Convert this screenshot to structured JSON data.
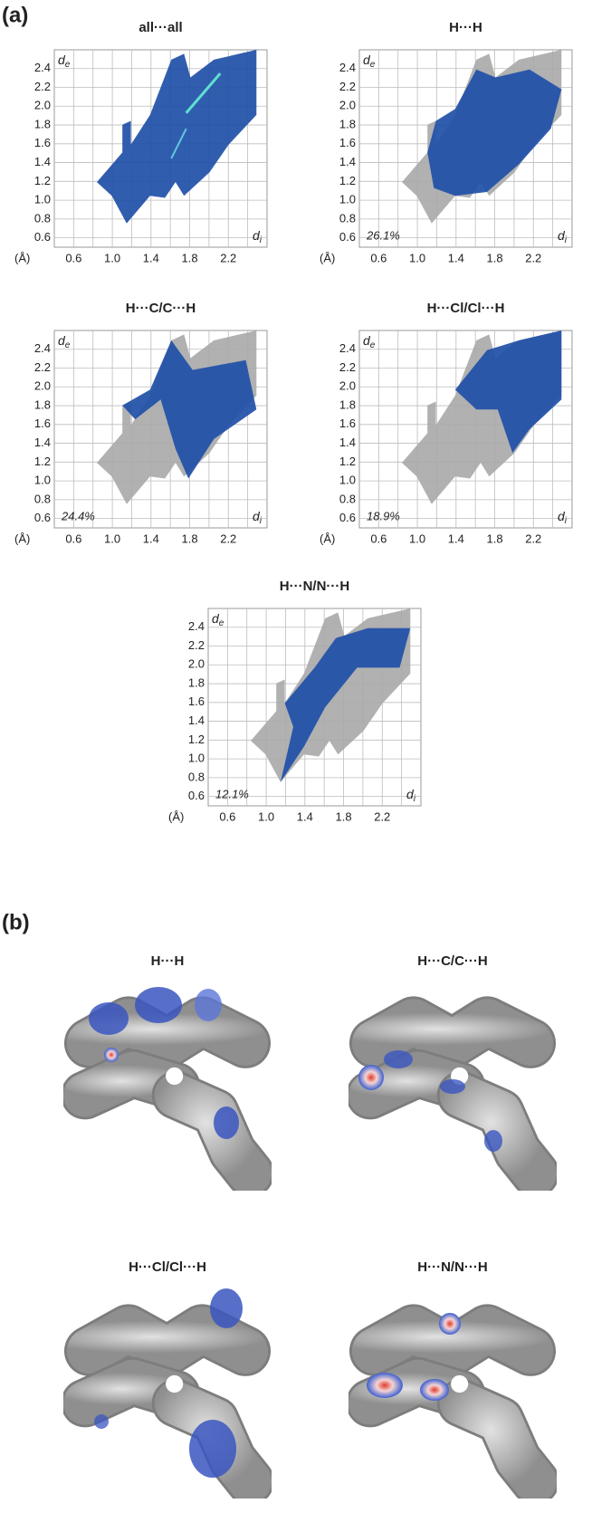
{
  "panels": [
    {
      "label": "(a)"
    },
    {
      "label": "(b)"
    }
  ],
  "chart_data": [
    {
      "type": "scatter",
      "title": "all···all",
      "xlabel": "d",
      "xlabel_sub": "i",
      "ylabel": "d",
      "ylabel_sub": "e",
      "unit": "(Å)",
      "xlim": [
        0.4,
        2.6
      ],
      "ylim": [
        0.5,
        2.6
      ],
      "xticks": [
        0.6,
        {
          "value": 1,
          "label": "1.0"
        },
        1.4,
        1.8,
        2.2
      ],
      "xminor": [
        0.8,
        1.2,
        1.6,
        2,
        2.4
      ],
      "yticks": [
        0.6,
        0.8,
        {
          "value": 1,
          "label": "1.0"
        },
        1.2,
        1.4,
        1.6,
        1.8,
        {
          "value": 2,
          "label": "2.0"
        },
        2.2,
        2.4
      ],
      "grid": true,
      "color": "#1f4fa8"
    },
    {
      "type": "scatter",
      "title": "H···H",
      "xlabel": "d",
      "xlabel_sub": "i",
      "ylabel": "d",
      "ylabel_sub": "e",
      "unit": "(Å)",
      "xlim": [
        0.4,
        2.6
      ],
      "ylim": [
        0.5,
        2.6
      ],
      "xticks": [
        0.6,
        {
          "value": 1,
          "label": "1.0"
        },
        1.4,
        1.8,
        2.2
      ],
      "xminor": [
        0.8,
        1.2,
        1.6,
        2,
        2.4
      ],
      "yticks": [
        0.6,
        0.8,
        {
          "value": 1,
          "label": "1.0"
        },
        1.2,
        1.4,
        1.6,
        1.8,
        {
          "value": 2,
          "label": "2.0"
        },
        2.2,
        2.4
      ],
      "grid": true,
      "color": "#1f4fa8",
      "background_color": "#a8a8a8",
      "values": [
        26.1
      ],
      "value_labels": [
        "26.1%"
      ]
    },
    {
      "type": "scatter",
      "title": "H···C/C···H",
      "xlabel": "d",
      "xlabel_sub": "i",
      "ylabel": "d",
      "ylabel_sub": "e",
      "unit": "(Å)",
      "xlim": [
        0.4,
        2.6
      ],
      "ylim": [
        0.5,
        2.6
      ],
      "xticks": [
        0.6,
        {
          "value": 1,
          "label": "1.0"
        },
        1.4,
        1.8,
        2.2
      ],
      "xminor": [
        0.8,
        1.2,
        1.6,
        2,
        2.4
      ],
      "yticks": [
        0.6,
        0.8,
        {
          "value": 1,
          "label": "1.0"
        },
        1.2,
        1.4,
        1.6,
        1.8,
        {
          "value": 2,
          "label": "2.0"
        },
        2.2,
        2.4
      ],
      "grid": true,
      "color": "#1f4fa8",
      "background_color": "#a8a8a8",
      "values": [
        24.4
      ],
      "value_labels": [
        "24.4%"
      ]
    },
    {
      "type": "scatter",
      "title": "H···Cl/Cl···H",
      "xlabel": "d",
      "xlabel_sub": "i",
      "ylabel": "d",
      "ylabel_sub": "e",
      "unit": "(Å)",
      "xlim": [
        0.4,
        2.6
      ],
      "ylim": [
        0.5,
        2.6
      ],
      "xticks": [
        0.6,
        {
          "value": 1,
          "label": "1.0"
        },
        1.4,
        1.8,
        2.2
      ],
      "xminor": [
        0.8,
        1.2,
        1.6,
        2,
        2.4
      ],
      "yticks": [
        0.6,
        0.8,
        {
          "value": 1,
          "label": "1.0"
        },
        1.2,
        1.4,
        1.6,
        1.8,
        {
          "value": 2,
          "label": "2.0"
        },
        2.2,
        2.4
      ],
      "grid": true,
      "color": "#1f4fa8",
      "background_color": "#a8a8a8",
      "values": [
        18.9
      ],
      "value_labels": [
        "18.9%"
      ]
    },
    {
      "type": "scatter",
      "title": "H···N/N···H",
      "xlabel": "d",
      "xlabel_sub": "i",
      "ylabel": "d",
      "ylabel_sub": "e",
      "unit": "(Å)",
      "xlim": [
        0.4,
        2.6
      ],
      "ylim": [
        0.5,
        2.6
      ],
      "xticks": [
        0.6,
        {
          "value": 1,
          "label": "1.0"
        },
        1.4,
        1.8,
        2.2
      ],
      "xminor": [
        0.8,
        1.2,
        1.6,
        2,
        2.4
      ],
      "yticks": [
        0.6,
        0.8,
        {
          "value": 1,
          "label": "1.0"
        },
        1.2,
        1.4,
        1.6,
        1.8,
        {
          "value": 2,
          "label": "2.0"
        },
        2.2,
        2.4
      ],
      "grid": true,
      "color": "#1f4fa8",
      "background_color": "#a8a8a8",
      "values": [
        12.1
      ],
      "value_labels": [
        "12.1%"
      ]
    }
  ],
  "surfaces": [
    {
      "title": "H···H"
    },
    {
      "title": "H···C/C···H"
    },
    {
      "title": "H···Cl/Cl···H"
    },
    {
      "title": "H···N/N···H"
    }
  ]
}
